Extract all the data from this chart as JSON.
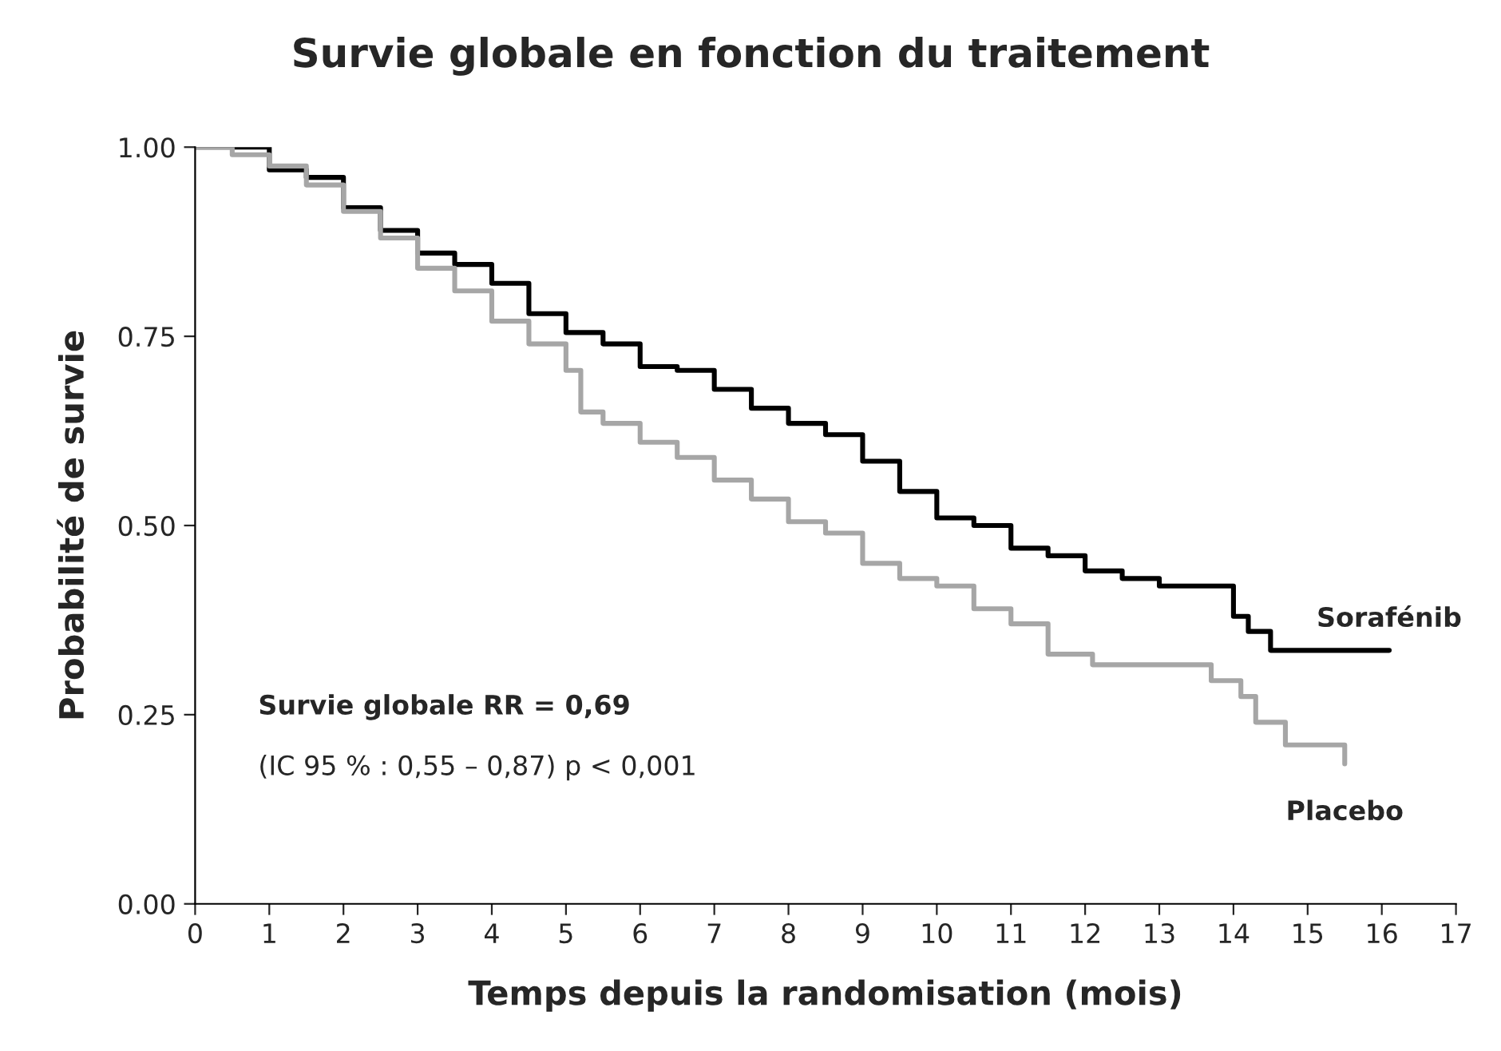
{
  "chart_data": {
    "type": "step",
    "title": "Survie globale en fonction du traitement",
    "xlabel": "Temps depuis la randomisation (mois)",
    "ylabel": "Probabilité de survie",
    "xlim": [
      0,
      17
    ],
    "xticks": [
      0,
      1,
      2,
      3,
      4,
      5,
      6,
      7,
      8,
      9,
      10,
      11,
      12,
      13,
      14,
      15,
      16,
      17
    ],
    "ylim": [
      0,
      1
    ],
    "yticks": [
      {
        "value": 0,
        "label": "0.00"
      },
      {
        "value": 0.25,
        "label": "0.25"
      },
      {
        "value": 0.5,
        "label": "0.50"
      },
      {
        "value": 0.75,
        "label": "0.75"
      },
      {
        "value": 1,
        "label": "1.00"
      }
    ],
    "grid": false,
    "legend": false,
    "series": [
      {
        "name": "Sorafénib",
        "color": "#000000",
        "x": [
          0,
          0.5,
          1,
          1.5,
          2,
          2.5,
          3,
          3.5,
          4,
          4.5,
          5,
          5.5,
          6,
          6.5,
          7,
          7.5,
          8,
          8.5,
          9,
          9.5,
          10,
          10.5,
          11,
          11.5,
          12,
          12.5,
          13,
          14,
          14.2,
          14.5,
          16.1
        ],
        "values": [
          1.0,
          1.0,
          0.97,
          0.96,
          0.92,
          0.89,
          0.86,
          0.845,
          0.82,
          0.78,
          0.755,
          0.74,
          0.71,
          0.705,
          0.68,
          0.655,
          0.635,
          0.62,
          0.585,
          0.545,
          0.51,
          0.5,
          0.47,
          0.46,
          0.44,
          0.43,
          0.42,
          0.38,
          0.36,
          0.335,
          0.335
        ]
      },
      {
        "name": "Placebo",
        "color": "#a6a6a6",
        "x": [
          0,
          0.5,
          1,
          1.5,
          2,
          2.5,
          3,
          3.5,
          4,
          4.5,
          5,
          5.2,
          5.5,
          6,
          6.5,
          7,
          7.5,
          8,
          8.5,
          9,
          9.5,
          10,
          10.5,
          11,
          11.5,
          12.1,
          13.7,
          14.1,
          14.3,
          14.7,
          15.5
        ],
        "values": [
          1.0,
          0.99,
          0.975,
          0.95,
          0.915,
          0.88,
          0.84,
          0.81,
          0.77,
          0.74,
          0.705,
          0.65,
          0.635,
          0.61,
          0.59,
          0.56,
          0.535,
          0.505,
          0.49,
          0.45,
          0.43,
          0.42,
          0.39,
          0.37,
          0.33,
          0.316,
          0.295,
          0.274,
          0.24,
          0.21,
          0.185
        ]
      }
    ],
    "annotations": [
      "Survie globale RR = 0,69",
      "(IC 95 % : 0,55 – 0,87) p < 0,001"
    ]
  }
}
